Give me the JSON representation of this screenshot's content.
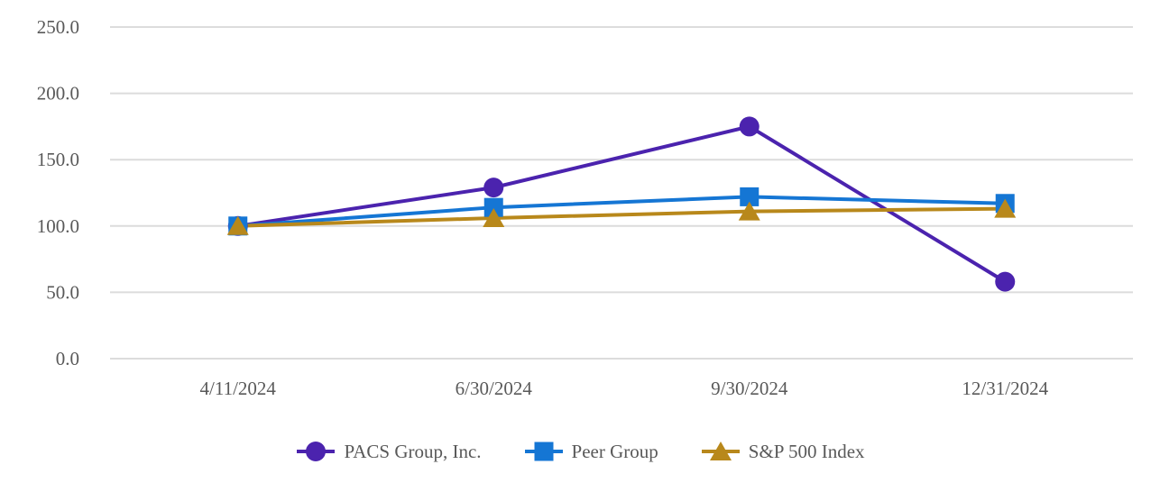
{
  "chart_data": {
    "type": "line",
    "title": "",
    "xlabel": "",
    "ylabel": "",
    "categories": [
      "4/11/2024",
      "6/30/2024",
      "9/30/2024",
      "12/31/2024"
    ],
    "series": [
      {
        "name": "PACS Group, Inc.",
        "values": [
          100,
          129,
          175,
          58
        ],
        "color": "#4B23AE",
        "marker": "circle"
      },
      {
        "name": "Peer Group",
        "values": [
          100,
          114,
          122,
          117
        ],
        "color": "#1576D4",
        "marker": "square"
      },
      {
        "name": "S&P 500 Index",
        "values": [
          100,
          106,
          111,
          113
        ],
        "color": "#B8881B",
        "marker": "triangle"
      }
    ],
    "ylim": [
      0,
      250
    ],
    "yticks": [
      0,
      50,
      100,
      150,
      200,
      250
    ],
    "ytick_labels": [
      "0.0",
      "50.0",
      "100.0",
      "150.0",
      "200.0",
      "250.0"
    ],
    "grid": true,
    "gridline_color": "#DCDCDC",
    "axis_text_color": "#595959",
    "legend_position": "bottom"
  }
}
